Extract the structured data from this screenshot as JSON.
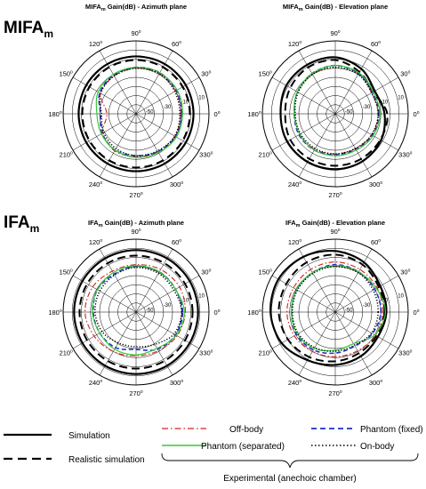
{
  "legend": {
    "simulation": "Simulation",
    "realistic": "Realistic simulation",
    "off_body": "Off-body",
    "phantom_fixed": "Phantom (fixed)",
    "phantom_separated": "Phantom (separated)",
    "on_body": "On-body",
    "experimental": "Experimental (anechoic chamber)"
  },
  "colors": {
    "simulation": "#000000",
    "realistic": "#000000",
    "off_body": "#d02020",
    "phantom_fixed": "#1c2fc8",
    "phantom_separated": "#33cc33",
    "on_body": "#000000",
    "grid": "#000000"
  },
  "chart_data": [
    {
      "type": "polar",
      "group": "MIFA",
      "group_sub": "m",
      "title": "MIFA",
      "title_sub": "m",
      "title_rest": " Gain(dB) - Azimuth plane",
      "angle_ticks_deg": [
        0,
        30,
        60,
        90,
        120,
        150,
        180,
        210,
        240,
        270,
        300,
        330
      ],
      "angle_tick_labels": [
        "0",
        "30",
        "60",
        "90",
        "120",
        "150",
        "180",
        "210",
        "240",
        "270",
        "300",
        "330"
      ],
      "radial_ticks": [
        "10",
        "-10",
        "-30",
        "-50"
      ],
      "rlim": [
        -60,
        20
      ],
      "angles_deg": [
        0,
        30,
        60,
        90,
        120,
        150,
        180,
        210,
        240,
        270,
        300,
        330
      ],
      "series": [
        {
          "key": "simulation",
          "values": [
            3,
            3,
            3,
            3,
            3,
            3,
            3,
            3,
            3,
            3,
            3,
            3
          ]
        },
        {
          "key": "realistic",
          "values": [
            -1,
            -1,
            -1,
            -1,
            -1,
            -1,
            -1,
            -1,
            -1,
            -1,
            -1,
            -1
          ]
        },
        {
          "key": "off_body",
          "values": [
            -11,
            -10,
            -9,
            -10,
            -12,
            -15,
            -28,
            -18,
            -13,
            -13,
            -12,
            -11
          ]
        },
        {
          "key": "phantom_fixed",
          "values": [
            -10,
            -9,
            -8,
            -9,
            -11,
            -14,
            -21,
            -17,
            -14,
            -14,
            -12,
            -10
          ]
        },
        {
          "key": "phantom_separated",
          "values": [
            -9,
            -8,
            -8,
            -9,
            -10,
            -12,
            -17,
            -16,
            -14,
            -12,
            -11,
            -9
          ]
        },
        {
          "key": "on_body",
          "values": [
            -12,
            -11,
            -9,
            -10,
            -12,
            -15,
            -22,
            -19,
            -16,
            -14,
            -13,
            -11
          ]
        }
      ]
    },
    {
      "type": "polar",
      "group": "MIFA",
      "group_sub": "m",
      "title": "MIFA",
      "title_sub": "m",
      "title_rest": " Gain(dB) - Elevation plane",
      "angle_ticks_deg": [
        0,
        30,
        60,
        90,
        120,
        150,
        180,
        210,
        240,
        270,
        300,
        330
      ],
      "angle_tick_labels": [
        "0",
        "30",
        "60",
        "90",
        "120",
        "150",
        "180",
        "210",
        "240",
        "270",
        "300",
        "330"
      ],
      "radial_ticks": [
        "10",
        "-10",
        "-30",
        "-50"
      ],
      "rlim": [
        -60,
        20
      ],
      "angles_deg": [
        0,
        30,
        60,
        90,
        120,
        150,
        180,
        210,
        240,
        270,
        300,
        330
      ],
      "series": [
        {
          "key": "simulation",
          "values": [
            -6,
            -10,
            -3,
            2,
            2,
            2,
            0,
            1,
            1,
            1,
            0,
            -2
          ]
        },
        {
          "key": "realistic",
          "values": [
            -3,
            -12,
            -7,
            -1,
            -1,
            -3,
            -5,
            -3,
            -3,
            -3,
            -3,
            -3
          ]
        },
        {
          "key": "off_body",
          "values": [
            -13,
            -14,
            -9,
            -7,
            -10,
            -12,
            -15,
            -15,
            -15,
            -16,
            -16,
            -14
          ]
        },
        {
          "key": "phantom_fixed",
          "values": [
            -12,
            -13,
            -9,
            -7,
            -9,
            -12,
            -15,
            -14,
            -14,
            -15,
            -15,
            -13
          ]
        },
        {
          "key": "phantom_separated",
          "values": [
            -11,
            -12,
            -8,
            -7,
            -9,
            -12,
            -15,
            -15,
            -14,
            -14,
            -14,
            -12
          ]
        },
        {
          "key": "on_body",
          "values": [
            -13,
            -14,
            -10,
            -9,
            -10,
            -13,
            -16,
            -16,
            -16,
            -16,
            -16,
            -14
          ]
        }
      ]
    },
    {
      "type": "polar",
      "group": "IFA",
      "group_sub": "m",
      "title": "IFA",
      "title_sub": "m",
      "title_rest": " Gain(dB) - Azimuth plane",
      "angle_ticks_deg": [
        0,
        30,
        60,
        90,
        120,
        150,
        180,
        210,
        240,
        270,
        300,
        330
      ],
      "angle_tick_labels": [
        "0",
        "30",
        "60",
        "90",
        "120",
        "150",
        "180",
        "210",
        "240",
        "270",
        "300",
        "330"
      ],
      "radial_ticks": [
        "10",
        "-10",
        "-30",
        "-50"
      ],
      "rlim": [
        -60,
        20
      ],
      "angles_deg": [
        0,
        30,
        60,
        90,
        120,
        150,
        180,
        210,
        240,
        270,
        300,
        330
      ],
      "series": [
        {
          "key": "simulation",
          "values": [
            8,
            8,
            8,
            8,
            8,
            8,
            8,
            8,
            8,
            8,
            8,
            8
          ]
        },
        {
          "key": "realistic",
          "values": [
            2,
            2,
            2,
            2,
            2,
            2,
            2,
            2,
            2,
            2,
            2,
            2
          ]
        },
        {
          "key": "off_body",
          "values": [
            -6,
            -5,
            -6,
            -8,
            -8,
            -5,
            -4,
            -7,
            -10,
            -12,
            -11,
            -8
          ]
        },
        {
          "key": "phantom_fixed",
          "values": [
            -9,
            -10,
            -9,
            -10,
            -12,
            -11,
            -13,
            -14,
            -15,
            -19,
            -13,
            -10
          ]
        },
        {
          "key": "phantom_separated",
          "values": [
            -7,
            -10,
            -9,
            -9,
            -10,
            -11,
            -12,
            -14,
            -13,
            -13,
            -14,
            -9
          ]
        },
        {
          "key": "on_body",
          "values": [
            -10,
            -12,
            -11,
            -11,
            -13,
            -14,
            -15,
            -17,
            -21,
            -22,
            -19,
            -12
          ]
        }
      ]
    },
    {
      "type": "polar",
      "group": "IFA",
      "group_sub": "m",
      "title": "IFA",
      "title_sub": "m",
      "title_rest": " Gain(dB) - Elevation plane",
      "angle_ticks_deg": [
        0,
        30,
        60,
        90,
        120,
        150,
        180,
        210,
        240,
        270,
        300,
        330
      ],
      "angle_tick_labels": [
        "0",
        "30",
        "60",
        "90",
        "120",
        "150",
        "180",
        "210",
        "240",
        "270",
        "300",
        "330"
      ],
      "radial_ticks": [
        "10",
        "-10",
        "-30",
        "-50"
      ],
      "rlim": [
        -60,
        20
      ],
      "angles_deg": [
        0,
        30,
        60,
        90,
        120,
        150,
        180,
        210,
        240,
        270,
        300,
        330
      ],
      "series": [
        {
          "key": "simulation",
          "values": [
            -4,
            -3,
            3,
            7,
            10,
            12,
            11,
            8,
            1,
            -2,
            -4,
            -6
          ]
        },
        {
          "key": "realistic",
          "values": [
            -6,
            -5,
            0,
            3,
            3,
            2,
            2,
            0,
            -3,
            -6,
            -8,
            -8
          ]
        },
        {
          "key": "off_body",
          "values": [
            -8,
            -7,
            -6,
            -5,
            -6,
            -7,
            -7,
            -8,
            -10,
            -11,
            -11,
            -9
          ]
        },
        {
          "key": "phantom_fixed",
          "values": [
            -10,
            -10,
            -9,
            -8,
            -10,
            -11,
            -12,
            -11,
            -12,
            -15,
            -17,
            -13
          ]
        },
        {
          "key": "phantom_separated",
          "values": [
            -5,
            -8,
            -9,
            -9,
            -10,
            -11,
            -12,
            -12,
            -14,
            -18,
            -20,
            -10
          ]
        },
        {
          "key": "on_body",
          "values": [
            -13,
            -12,
            -10,
            -10,
            -11,
            -12,
            -13,
            -13,
            -15,
            -17,
            -18,
            -14
          ]
        }
      ]
    }
  ]
}
